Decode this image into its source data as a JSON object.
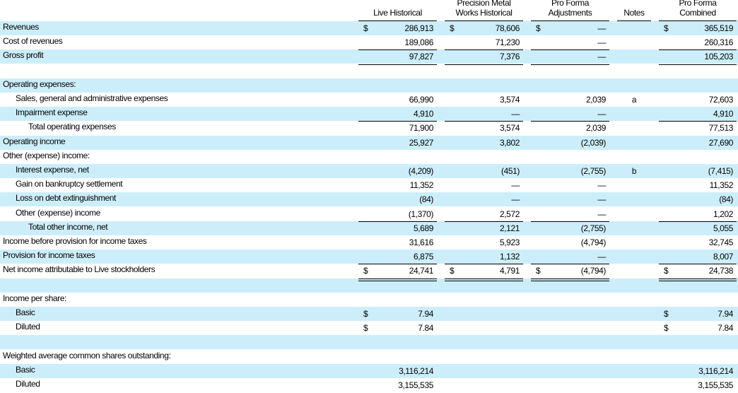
{
  "table": {
    "columns": [
      [
        "Live Historical"
      ],
      [
        "Precision Metal",
        "Works Historical"
      ],
      [
        "Pro Forma",
        "Adjustments"
      ],
      [
        "Notes"
      ],
      [
        "Pro Forma",
        "Combined"
      ]
    ],
    "rows": [
      {
        "label": "Revenues",
        "cells": [
          {
            "symbol": "$",
            "value": "286,913"
          },
          {
            "symbol": "$",
            "value": "78,606"
          },
          {
            "symbol": "$",
            "value": "—"
          },
          null,
          {
            "symbol": "$",
            "value": "365,519"
          }
        ]
      },
      {
        "label": "Cost of revenues",
        "cells": [
          {
            "value": "189,086"
          },
          {
            "value": "71,230"
          },
          {
            "value": "—"
          },
          null,
          {
            "value": "260,316"
          }
        ]
      },
      {
        "label": "Gross profit",
        "cells": [
          {
            "value": "97,827"
          },
          {
            "value": "7,376"
          },
          {
            "value": "—"
          },
          null,
          {
            "value": "105,203"
          }
        ]
      },
      null,
      {
        "label": "Operating expenses:"
      },
      {
        "label": "Sales, general and administrative expenses",
        "cells": [
          {
            "value": "66,990"
          },
          {
            "value": "3,574"
          },
          {
            "value": "2,039"
          },
          {
            "value": "a"
          },
          {
            "value": "72,603"
          }
        ]
      },
      {
        "label": "Impairment expense",
        "cells": [
          {
            "value": "4,910"
          },
          {
            "value": "—"
          },
          {
            "value": "—"
          },
          null,
          {
            "value": "4,910"
          }
        ]
      },
      {
        "label": "Total operating expenses",
        "cells": [
          {
            "value": "71,900"
          },
          {
            "value": "3,574"
          },
          {
            "value": "2,039"
          },
          null,
          {
            "value": "77,513"
          }
        ]
      },
      {
        "label": "Operating income",
        "cells": [
          {
            "value": "25,927"
          },
          {
            "value": "3,802"
          },
          {
            "value": "(2,039)"
          },
          null,
          {
            "value": "27,690"
          }
        ]
      },
      {
        "label": "Other (expense) income:"
      },
      {
        "label": "Interest expense, net",
        "cells": [
          {
            "value": "(4,209)"
          },
          {
            "value": "(451)"
          },
          {
            "value": "(2,755)"
          },
          {
            "value": "b"
          },
          {
            "value": "(7,415)"
          }
        ]
      },
      {
        "label": "Gain on bankruptcy settlement",
        "cells": [
          {
            "value": "11,352"
          },
          {
            "value": "—"
          },
          {
            "value": "—"
          },
          null,
          {
            "value": "11,352"
          }
        ]
      },
      {
        "label": "Loss on debt extinguishment",
        "cells": [
          {
            "value": "(84)"
          },
          {
            "value": "—"
          },
          {
            "value": "—"
          },
          null,
          {
            "value": "(84)"
          }
        ]
      },
      {
        "label": "Other (expense) income",
        "cells": [
          {
            "value": "(1,370)"
          },
          {
            "value": "2,572"
          },
          {
            "value": "—"
          },
          null,
          {
            "value": "1,202"
          }
        ]
      },
      {
        "label": "Total other income, net",
        "cells": [
          {
            "value": "5,689"
          },
          {
            "value": "2,121"
          },
          {
            "value": "(2,755)"
          },
          null,
          {
            "value": "5,055"
          }
        ]
      },
      {
        "label": "Income before provision for income taxes",
        "cells": [
          {
            "value": "31,616"
          },
          {
            "value": "5,923"
          },
          {
            "value": "(4,794)"
          },
          null,
          {
            "value": "32,745"
          }
        ]
      },
      {
        "label": "Provision for income taxes",
        "cells": [
          {
            "value": "6,875"
          },
          {
            "value": "1,132"
          },
          {
            "value": "—"
          },
          null,
          {
            "value": "8,007"
          }
        ]
      },
      {
        "label": "Net income attributable to Live stockholders",
        "cells": [
          {
            "symbol": "$",
            "value": "24,741"
          },
          {
            "symbol": "$",
            "value": "4,791"
          },
          {
            "symbol": "$",
            "value": "(4,794)"
          },
          null,
          {
            "symbol": "$",
            "value": "24,738"
          }
        ]
      },
      null,
      {
        "label": "Income per share:"
      },
      {
        "label": "Basic",
        "cells": [
          {
            "symbol": "$",
            "value": "7.94"
          },
          null,
          null,
          null,
          {
            "symbol": "$",
            "value": "7.94"
          }
        ]
      },
      {
        "label": "Diluted",
        "cells": [
          {
            "symbol": "$",
            "value": "7.84"
          },
          null,
          null,
          null,
          {
            "symbol": "$",
            "value": "7.84"
          }
        ]
      },
      null,
      {
        "label": "Weighted average common shares outstanding:"
      },
      {
        "label": "Basic",
        "cells": [
          {
            "value": "3,116,214"
          },
          null,
          null,
          null,
          {
            "value": "3,116,214"
          }
        ]
      },
      {
        "label": "Diluted",
        "cells": [
          {
            "value": "3,155,535"
          },
          null,
          null,
          null,
          {
            "value": "3,155,535"
          }
        ]
      }
    ]
  }
}
